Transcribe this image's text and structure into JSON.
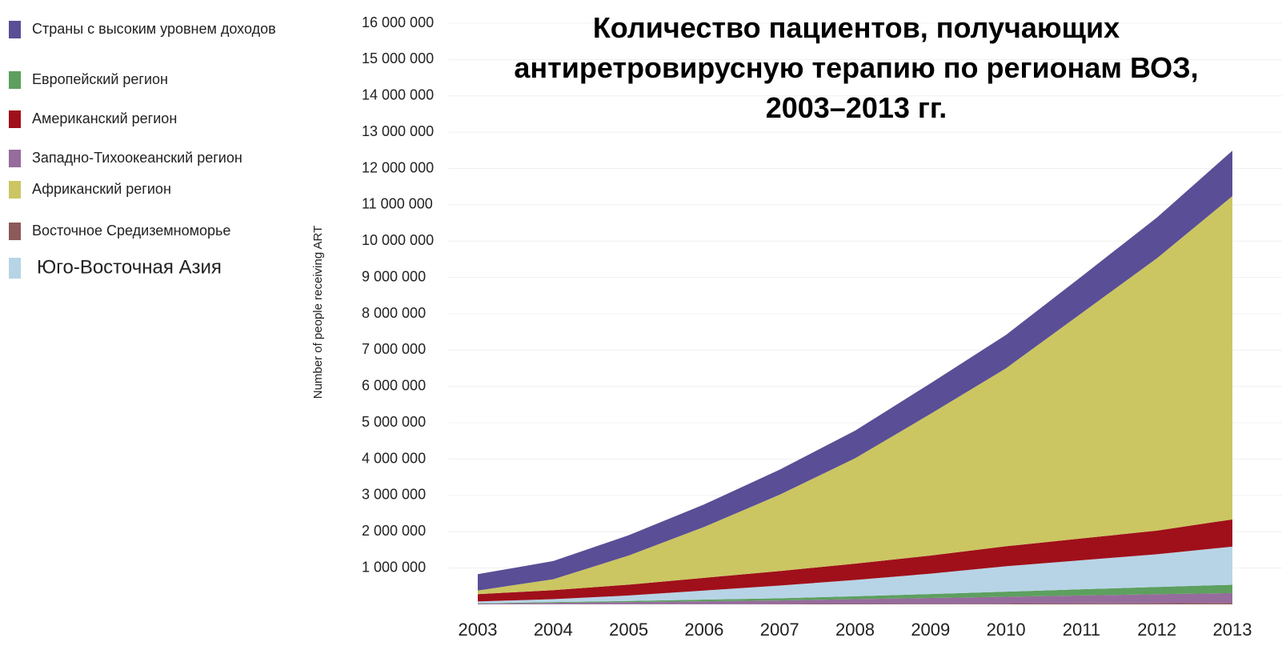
{
  "chart_data": {
    "type": "stacked_area",
    "title": "Количество пациентов, получающих антиретровирусную терапию по регионам ВОЗ, 2003–2013 гг.",
    "y_label": "Number of people receiving ART",
    "categories": [
      "2003",
      "2004",
      "2005",
      "2006",
      "2007",
      "2008",
      "2009",
      "2010",
      "2011",
      "2012",
      "2013"
    ],
    "series": [
      {
        "name": "Страны с высоким уровнем доходов",
        "color": "#5a4e96",
        "values": [
          450000,
          500000,
          560000,
          620000,
          690000,
          760000,
          840000,
          920000,
          1010000,
          1120000,
          1250000
        ]
      },
      {
        "name": "Европейский регион",
        "color": "#5c9f5e",
        "values": [
          10000,
          20000,
          30000,
          45000,
          60000,
          80000,
          110000,
          140000,
          170000,
          200000,
          230000
        ]
      },
      {
        "name": "Американский регион",
        "color": "#a0101a",
        "values": [
          200000,
          250000,
          300000,
          350000,
          400000,
          450000,
          500000,
          550000,
          600000,
          650000,
          750000
        ]
      },
      {
        "name": "Западно-Тихоокеанский регион",
        "color": "#956c9b",
        "values": [
          20000,
          40000,
          60000,
          80000,
          100000,
          130000,
          160000,
          190000,
          220000,
          250000,
          270000
        ]
      },
      {
        "name": "Африканский регион",
        "color": "#cbc661",
        "values": [
          100000,
          300000,
          800000,
          1400000,
          2100000,
          2900000,
          3900000,
          4900000,
          6200000,
          7500000,
          8900000
        ]
      },
      {
        "name": "Восточное Средиземноморье",
        "color": "#8c5a5a",
        "values": [
          1000,
          2000,
          4000,
          6000,
          8000,
          12000,
          15000,
          20000,
          25000,
          30000,
          40000
        ]
      },
      {
        "name": "Юго-Восточная Азия",
        "color": "#b6d4e6",
        "values": [
          50000,
          80000,
          150000,
          250000,
          350000,
          450000,
          560000,
          700000,
          800000,
          900000,
          1050000
        ]
      }
    ],
    "ylim": [
      0,
      16000000
    ],
    "yticks": [
      {
        "value": 1000000,
        "label": "1 000 000"
      },
      {
        "value": 2000000,
        "label": "2 000 000"
      },
      {
        "value": 3000000,
        "label": "3 000 000"
      },
      {
        "value": 4000000,
        "label": "4 000 000"
      },
      {
        "value": 5000000,
        "label": "5 000 000"
      },
      {
        "value": 6000000,
        "label": "6 000 000"
      },
      {
        "value": 7000000,
        "label": "7 000 000"
      },
      {
        "value": 8000000,
        "label": "8 000 000"
      },
      {
        "value": 9000000,
        "label": "9 000 000"
      },
      {
        "value": 10000000,
        "label": "10 000 000"
      },
      {
        "value": 11000000,
        "label": "11 000 000"
      },
      {
        "value": 12000000,
        "label": "12 000 000"
      },
      {
        "value": 13000000,
        "label": "13 000 000"
      },
      {
        "value": 14000000,
        "label": "14 000 000"
      },
      {
        "value": 15000000,
        "label": "15 000 000"
      },
      {
        "value": 16000000,
        "label": "16 000 000"
      }
    ],
    "grid": true
  }
}
